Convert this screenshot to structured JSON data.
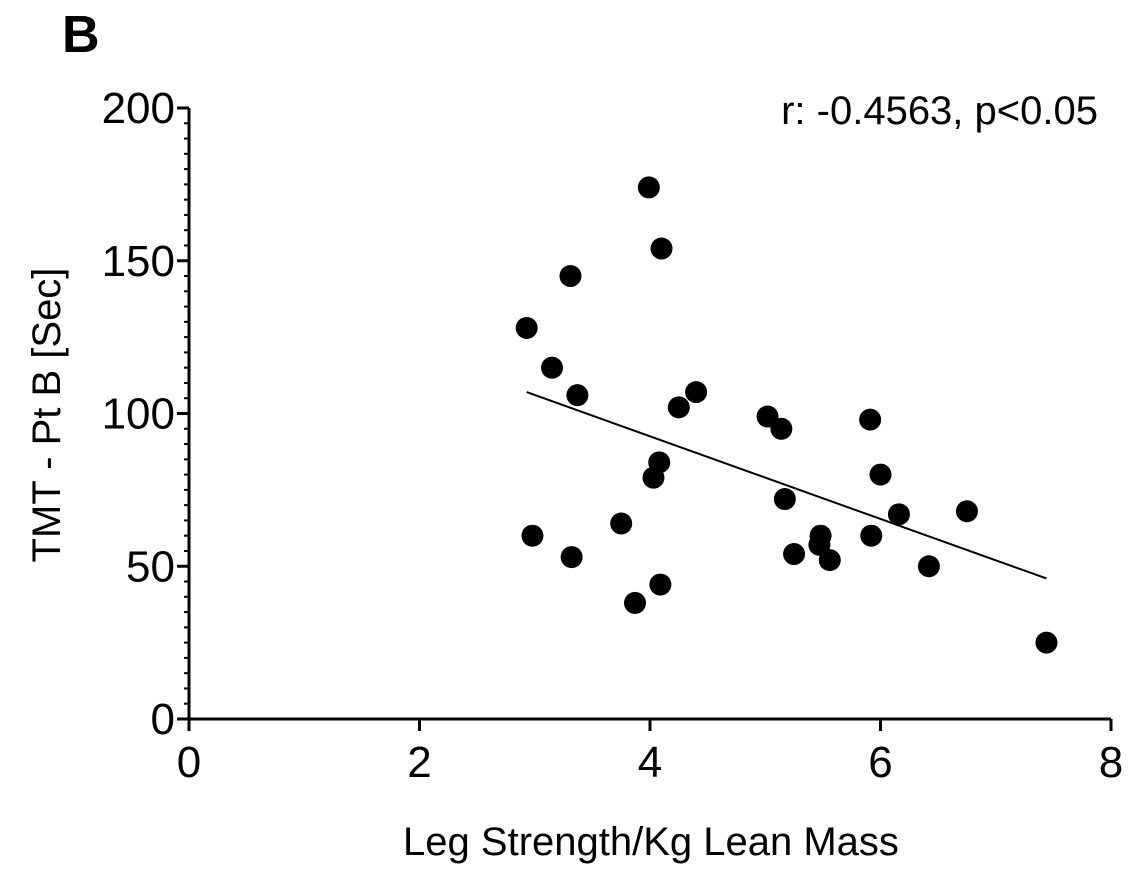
{
  "panel_label": "B",
  "chart_data": {
    "type": "scatter",
    "title": "",
    "xlabel": "Leg Strength/Kg Lean Mass",
    "ylabel": "TMT - Pt B [Sec]",
    "xlim": [
      0,
      8
    ],
    "ylim": [
      0,
      200
    ],
    "xticks": [
      "0",
      "2",
      "4",
      "6",
      "8"
    ],
    "yticks": [
      "0",
      "50",
      "100",
      "150",
      "200"
    ],
    "grid": false,
    "annotation": "r: -0.4563, p<0.05",
    "points": [
      {
        "x": 2.93,
        "y": 128
      },
      {
        "x": 2.98,
        "y": 60
      },
      {
        "x": 3.15,
        "y": 115
      },
      {
        "x": 3.31,
        "y": 145
      },
      {
        "x": 3.32,
        "y": 53
      },
      {
        "x": 3.37,
        "y": 106
      },
      {
        "x": 3.75,
        "y": 64
      },
      {
        "x": 3.87,
        "y": 38
      },
      {
        "x": 3.99,
        "y": 174
      },
      {
        "x": 4.03,
        "y": 79
      },
      {
        "x": 4.08,
        "y": 84
      },
      {
        "x": 4.09,
        "y": 44
      },
      {
        "x": 4.1,
        "y": 154
      },
      {
        "x": 4.25,
        "y": 102
      },
      {
        "x": 4.4,
        "y": 107
      },
      {
        "x": 5.02,
        "y": 99
      },
      {
        "x": 5.14,
        "y": 95
      },
      {
        "x": 5.17,
        "y": 72
      },
      {
        "x": 5.25,
        "y": 54
      },
      {
        "x": 5.47,
        "y": 57
      },
      {
        "x": 5.48,
        "y": 60
      },
      {
        "x": 5.56,
        "y": 52
      },
      {
        "x": 5.91,
        "y": 98
      },
      {
        "x": 5.92,
        "y": 60
      },
      {
        "x": 6.0,
        "y": 80
      },
      {
        "x": 6.16,
        "y": 67
      },
      {
        "x": 6.42,
        "y": 50
      },
      {
        "x": 6.75,
        "y": 68
      },
      {
        "x": 7.44,
        "y": 25
      }
    ],
    "fit_line": {
      "x": [
        2.93,
        7.44
      ],
      "y": [
        107,
        46
      ]
    }
  }
}
